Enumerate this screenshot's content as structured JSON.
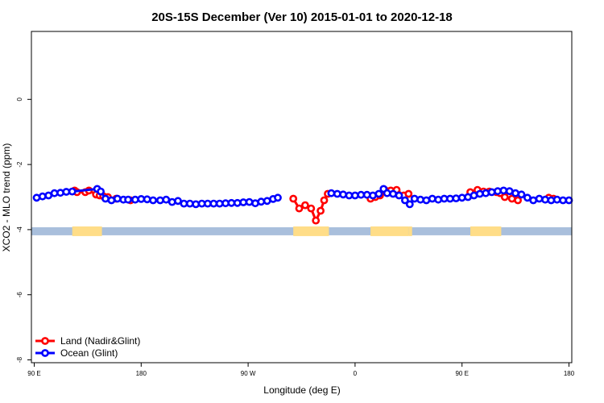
{
  "chart_data": {
    "type": "line",
    "title": "20S-15S December (Ver 10)   2015-01-01 to 2020-12-18",
    "xlabel": "Longitude (deg E)",
    "ylabel": "XCO2 - MLO trend (ppm)",
    "xlim": [
      90,
      540
    ],
    "ylim": [
      -8,
      2
    ],
    "x_ticks": [
      {
        "value": 90,
        "label": "90 E"
      },
      {
        "value": 180,
        "label": "180"
      },
      {
        "value": 270,
        "label": "90 W"
      },
      {
        "value": 360,
        "label": "0"
      },
      {
        "value": 450,
        "label": "90 E"
      },
      {
        "value": 540,
        "label": "180"
      }
    ],
    "y_ticks": [
      {
        "value": 0,
        "label": "0"
      },
      {
        "value": -2,
        "label": "-2"
      },
      {
        "value": -4,
        "label": "-4"
      },
      {
        "value": -6,
        "label": "-6"
      },
      {
        "value": -8,
        "label": "-8"
      }
    ],
    "grid": false,
    "legend_position": "bottom-left",
    "series": [
      {
        "name": "Land (Nadir&Glint)",
        "color": "#ff0000",
        "segments": [
          [
            [
              124,
              -2.8
            ],
            [
              126,
              -2.85
            ],
            [
              133,
              -2.85
            ],
            [
              136,
              -2.8
            ],
            [
              142,
              -2.92
            ],
            [
              145,
              -2.95
            ],
            [
              148,
              -2.97
            ],
            [
              152,
              -3.0
            ],
            [
              159,
              -3.05
            ],
            [
              171,
              -3.1
            ]
          ],
          [
            [
              308,
              -3.05
            ],
            [
              313,
              -3.35
            ],
            [
              318,
              -3.25
            ],
            [
              323,
              -3.35
            ],
            [
              327,
              -3.72
            ],
            [
              331,
              -3.42
            ],
            [
              334,
              -3.1
            ],
            [
              337,
              -2.9
            ]
          ],
          [
            [
              373,
              -3.05
            ],
            [
              377,
              -3.0
            ],
            [
              381,
              -2.95
            ],
            [
              385,
              -2.78
            ],
            [
              390,
              -2.8
            ],
            [
              395,
              -2.78
            ],
            [
              401,
              -2.95
            ],
            [
              405,
              -2.9
            ]
          ],
          [
            [
              457,
              -2.85
            ],
            [
              463,
              -2.78
            ],
            [
              468,
              -2.83
            ],
            [
              473,
              -2.83
            ],
            [
              479,
              -2.85
            ],
            [
              482,
              -2.88
            ],
            [
              486,
              -3.0
            ],
            [
              492,
              -3.05
            ],
            [
              497,
              -3.1
            ]
          ],
          [
            [
              523,
              -3.02
            ],
            [
              527,
              -3.05
            ]
          ]
        ]
      },
      {
        "name": "Ocean (Glint)",
        "color": "#0000ff",
        "segments": [
          [
            [
              92,
              -3.02
            ],
            [
              97,
              -2.98
            ],
            [
              102,
              -2.95
            ],
            [
              107,
              -2.88
            ],
            [
              112,
              -2.87
            ],
            [
              117,
              -2.84
            ],
            [
              122,
              -2.83
            ],
            [
              143,
              -2.75
            ],
            [
              146,
              -2.83
            ],
            [
              150,
              -3.05
            ],
            [
              155,
              -3.1
            ],
            [
              160,
              -3.05
            ],
            [
              165,
              -3.08
            ],
            [
              169,
              -3.08
            ],
            [
              175,
              -3.08
            ],
            [
              180,
              -3.06
            ],
            [
              185,
              -3.07
            ],
            [
              190,
              -3.1
            ],
            [
              196,
              -3.1
            ],
            [
              201,
              -3.08
            ],
            [
              206,
              -3.15
            ],
            [
              211,
              -3.12
            ],
            [
              216,
              -3.2
            ],
            [
              221,
              -3.2
            ],
            [
              226,
              -3.22
            ],
            [
              231,
              -3.2
            ],
            [
              236,
              -3.2
            ],
            [
              241,
              -3.2
            ],
            [
              246,
              -3.2
            ],
            [
              251,
              -3.19
            ],
            [
              256,
              -3.18
            ],
            [
              261,
              -3.18
            ],
            [
              266,
              -3.16
            ],
            [
              271,
              -3.15
            ],
            [
              276,
              -3.19
            ],
            [
              281,
              -3.14
            ],
            [
              286,
              -3.12
            ],
            [
              291,
              -3.06
            ],
            [
              295,
              -3.02
            ]
          ],
          [
            [
              340,
              -2.88
            ],
            [
              345,
              -2.9
            ],
            [
              350,
              -2.92
            ],
            [
              355,
              -2.95
            ],
            [
              360,
              -2.95
            ],
            [
              365,
              -2.93
            ],
            [
              370,
              -2.93
            ],
            [
              375,
              -2.95
            ],
            [
              380,
              -2.9
            ],
            [
              384,
              -2.75
            ]
          ],
          [
            [
              387,
              -2.88
            ],
            [
              392,
              -2.9
            ],
            [
              397,
              -2.95
            ],
            [
              402,
              -3.1
            ],
            [
              406,
              -3.22
            ],
            [
              410,
              -3.05
            ],
            [
              415,
              -3.08
            ],
            [
              420,
              -3.1
            ],
            [
              425,
              -3.05
            ],
            [
              430,
              -3.08
            ],
            [
              435,
              -3.05
            ],
            [
              440,
              -3.05
            ],
            [
              445,
              -3.04
            ],
            [
              450,
              -3.02
            ],
            [
              455,
              -3.0
            ],
            [
              460,
              -2.95
            ],
            [
              465,
              -2.9
            ],
            [
              470,
              -2.88
            ],
            [
              475,
              -2.85
            ],
            [
              480,
              -2.82
            ],
            [
              485,
              -2.8
            ],
            [
              490,
              -2.82
            ],
            [
              495,
              -2.88
            ],
            [
              500,
              -2.92
            ],
            [
              505,
              -3.02
            ],
            [
              510,
              -3.1
            ],
            [
              515,
              -3.05
            ],
            [
              520,
              -3.08
            ],
            [
              525,
              -3.1
            ],
            [
              530,
              -3.08
            ],
            [
              535,
              -3.1
            ],
            [
              540,
              -3.1
            ]
          ]
        ]
      }
    ],
    "surface_strip": {
      "y": -4.05,
      "ocean_color": "#a9bfdc",
      "land_color": "#ffdd88",
      "land_ranges": [
        [
          122,
          147
        ],
        [
          308,
          338
        ],
        [
          373,
          405
        ],
        [
          405,
          408
        ],
        [
          457,
          483
        ]
      ]
    }
  }
}
